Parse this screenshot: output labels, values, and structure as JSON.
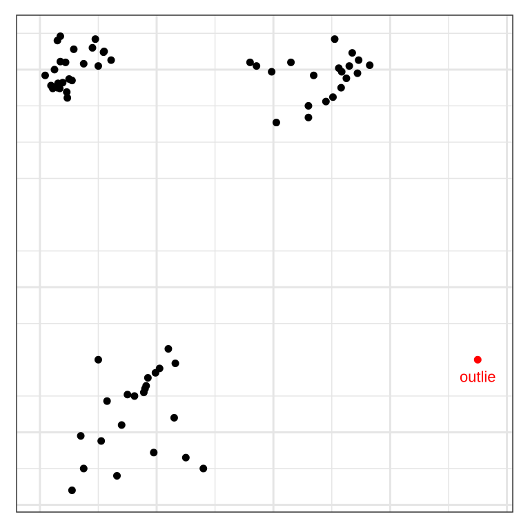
{
  "chart_data": {
    "type": "scatter",
    "title": "",
    "xlabel": "",
    "ylabel": "",
    "xlim": [
      -1.9,
      6.6
    ],
    "ylim": [
      -2.6,
      4.25
    ],
    "grid": true,
    "major_x": [
      -1.5,
      0.5,
      2.5,
      4.5,
      6.5
    ],
    "minor_x": [
      -0.5,
      1.5,
      3.5,
      5.5
    ],
    "major_y": [
      -2.5,
      -1.5,
      0.5,
      3.5
    ],
    "minor_y": [
      -2.0,
      -1.0,
      0.0,
      1.0,
      2.0,
      2.5,
      3.0,
      4.0,
      4.5,
      5.0
    ],
    "colors": {
      "points": "#000000",
      "outlier": "#ff0000",
      "grid": "#e5e5e5",
      "border": "#333333",
      "background": "#ffffff"
    },
    "points": [
      {
        "x": -1.25,
        "y": 3.5
      },
      {
        "x": -1.2,
        "y": 3.25
      },
      {
        "x": -1.11,
        "y": 3.32
      },
      {
        "x": -1.0,
        "y": 3.37
      },
      {
        "x": -1.04,
        "y": 3.19
      },
      {
        "x": -1.16,
        "y": 3.24
      },
      {
        "x": -1.19,
        "y": 3.31
      },
      {
        "x": -1.24,
        "y": 3.26
      },
      {
        "x": -1.28,
        "y": 3.24
      },
      {
        "x": -1.31,
        "y": 3.28
      },
      {
        "x": -1.41,
        "y": 3.42
      },
      {
        "x": -1.15,
        "y": 3.61
      },
      {
        "x": -0.6,
        "y": 3.8
      },
      {
        "x": -1.06,
        "y": 3.6
      },
      {
        "x": -0.75,
        "y": 3.58
      },
      {
        "x": -1.2,
        "y": 3.9
      },
      {
        "x": -1.15,
        "y": 3.96
      },
      {
        "x": -0.92,
        "y": 3.78
      },
      {
        "x": -0.95,
        "y": 3.35
      },
      {
        "x": -0.5,
        "y": 3.55
      },
      {
        "x": -1.03,
        "y": 3.11
      },
      {
        "x": -0.55,
        "y": 3.92
      },
      {
        "x": -0.4,
        "y": 3.75
      },
      {
        "x": -0.28,
        "y": 3.63
      },
      {
        "x": -0.41,
        "y": 3.74
      },
      {
        "x": 2.1,
        "y": 3.6
      },
      {
        "x": 2.47,
        "y": 3.47
      },
      {
        "x": 2.8,
        "y": 3.6
      },
      {
        "x": 3.19,
        "y": 3.42
      },
      {
        "x": 3.75,
        "y": 3.38
      },
      {
        "x": 4.15,
        "y": 3.56
      },
      {
        "x": 3.62,
        "y": 3.52
      },
      {
        "x": 3.67,
        "y": 3.47
      },
      {
        "x": 3.8,
        "y": 3.55
      },
      {
        "x": 3.94,
        "y": 3.45
      },
      {
        "x": 3.66,
        "y": 3.25
      },
      {
        "x": 3.52,
        "y": 3.12
      },
      {
        "x": 3.4,
        "y": 3.06
      },
      {
        "x": 3.1,
        "y": 3.0
      },
      {
        "x": 3.55,
        "y": 3.92
      },
      {
        "x": 3.85,
        "y": 3.73
      },
      {
        "x": 3.96,
        "y": 3.63
      },
      {
        "x": 2.21,
        "y": 3.55
      },
      {
        "x": 3.1,
        "y": 2.84
      },
      {
        "x": 2.55,
        "y": 2.77
      },
      {
        "x": -0.5,
        "y": -0.5
      },
      {
        "x": 0.7,
        "y": -0.35
      },
      {
        "x": 0.82,
        "y": -0.55
      },
      {
        "x": 0.55,
        "y": -0.62
      },
      {
        "x": 0.48,
        "y": -0.68
      },
      {
        "x": 0.35,
        "y": -0.75
      },
      {
        "x": 0.32,
        "y": -0.86
      },
      {
        "x": 0.3,
        "y": -0.9
      },
      {
        "x": 0.28,
        "y": -0.95
      },
      {
        "x": 0.12,
        "y": -1.0
      },
      {
        "x": 0.0,
        "y": -0.98
      },
      {
        "x": -0.35,
        "y": -1.07
      },
      {
        "x": -0.1,
        "y": -1.4
      },
      {
        "x": -0.45,
        "y": -1.62
      },
      {
        "x": -0.8,
        "y": -1.55
      },
      {
        "x": 0.45,
        "y": -1.78
      },
      {
        "x": -0.75,
        "y": -2.0
      },
      {
        "x": -0.18,
        "y": -2.1
      },
      {
        "x": 1.0,
        "y": -1.85
      },
      {
        "x": 1.3,
        "y": -2.0
      },
      {
        "x": -0.95,
        "y": -2.3
      },
      {
        "x": 0.8,
        "y": -1.3
      }
    ],
    "outlier": {
      "x": 6.0,
      "y": -0.5,
      "label": "outlie"
    }
  }
}
